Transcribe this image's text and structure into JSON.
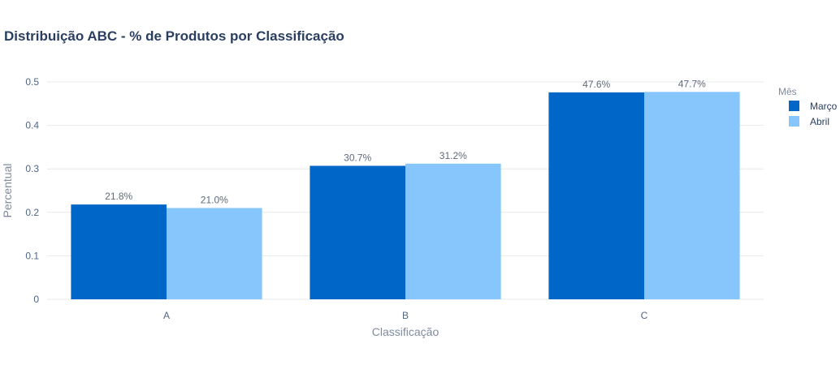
{
  "chart_data": {
    "type": "bar",
    "title": "Distribuição ABC - % de Produtos por Classificação",
    "xlabel": "Classificação",
    "ylabel": "Percentual",
    "categories": [
      "A",
      "B",
      "C"
    ],
    "ylim": [
      0,
      0.5
    ],
    "yticks": [
      0,
      0.1,
      0.2,
      0.3,
      0.4,
      0.5
    ],
    "ytick_labels": [
      "0",
      "0.1",
      "0.2",
      "0.3",
      "0.4",
      "0.5"
    ],
    "grid": true,
    "legend": {
      "title": "Mês",
      "placement": "right"
    },
    "series": [
      {
        "name": "Março",
        "color": "#0066c8",
        "values": [
          0.218,
          0.307,
          0.476
        ],
        "labels": [
          "21.8%",
          "30.7%",
          "47.6%"
        ]
      },
      {
        "name": "Abril",
        "color": "#87c6fd",
        "values": [
          0.21,
          0.312,
          0.477
        ],
        "labels": [
          "21.0%",
          "31.2%",
          "47.7%"
        ]
      }
    ]
  }
}
